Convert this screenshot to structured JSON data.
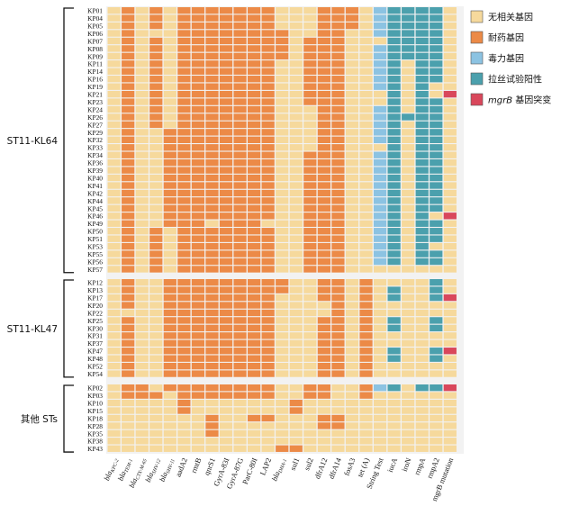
{
  "chart_data": {
    "type": "heatmap",
    "colors": {
      "none": "#f6d99c",
      "resistance": "#ec8a47",
      "virulence": "#8cc3e2",
      "string_pos": "#4ba0ad",
      "mutation": "#d9475b"
    },
    "legend": {
      "placement": "top-right",
      "items": [
        {
          "key": "none",
          "label": "无相关基因"
        },
        {
          "key": "resistance",
          "label": "耐药基因"
        },
        {
          "key": "virulence",
          "label": "毒力基因"
        },
        {
          "key": "string_pos",
          "label": "拉丝试验阳性"
        },
        {
          "key": "mutation",
          "label_em": "mgrB",
          "label": " 基因突变"
        }
      ]
    },
    "columns": [
      "bla_KPC-2",
      "bla_TEM-1",
      "bla_CTX-M-65",
      "bla_SHV-12",
      "bla_SHV-11",
      "aadA2",
      "rmtB",
      "qnrS1",
      "GyrA-83I",
      "GyrA-87G",
      "ParC-80I",
      "LAP2",
      "bla_DHA-1",
      "sul1",
      "sul2",
      "dfrA12",
      "dfrA14",
      "fosA3",
      "tet (A)",
      "String Test",
      "iucA",
      "iroN",
      "rmpA",
      "rmpA2",
      "mgrB mutation"
    ],
    "groups": [
      {
        "label": "ST11-KL64",
        "rows": [
          {
            "id": "KP01",
            "cells": "N R N R N R R R R R R R N N N R R R N V S S S S N"
          },
          {
            "id": "KP04",
            "cells": "N R N R N R R R R R R R N N N R R R N V S S S S N"
          },
          {
            "id": "KP05",
            "cells": "N R N R N R R R R R R R N N N R R R N V S S S S N"
          },
          {
            "id": "KP06",
            "cells": "N R N N N R R R R R R R R N N R R N N V S S S S N"
          },
          {
            "id": "KP07",
            "cells": "N R N R N R R R R R R R R N R R R N N N S S S S N"
          },
          {
            "id": "KP08",
            "cells": "N R N R N R R R R R R R R N R R R N N V S S S S N"
          },
          {
            "id": "KP09",
            "cells": "N R N R N R R R R R R R R N R R R N N V S S S S N"
          },
          {
            "id": "KP11",
            "cells": "N R N R N R R R R R R R N N R R R N N V S N S S N"
          },
          {
            "id": "KP14",
            "cells": "N R N R N R R R R R R R N N R R R N N V S N S S N"
          },
          {
            "id": "KP16",
            "cells": "N R N R N R R R R R R R N N R R R N N V S N S S N"
          },
          {
            "id": "KP19",
            "cells": "N R N R N R R R R R R R N N R R R N N V S N S N N"
          },
          {
            "id": "KP21",
            "cells": "N R N R N R R R R R R R N N R R R N N N S N S N M"
          },
          {
            "id": "KP23",
            "cells": "N R N R N R R R R R R R N N R R R N N N S N S S N"
          },
          {
            "id": "KP24",
            "cells": "N R N R N R R R R R R R N N N R R N N V S N S S N"
          },
          {
            "id": "KP26",
            "cells": "N R N R N R R R R R R R N N N R R N N V S S S S N"
          },
          {
            "id": "KP27",
            "cells": "N R N R N R R R R R R R N N N R R N N V S N S S N"
          },
          {
            "id": "KP29",
            "cells": "N R N N R R R R R R R R N N N R R N N V S N S S N"
          },
          {
            "id": "KP32",
            "cells": "N R N N R R R R R R R R N N N R R N N V S N S S N"
          },
          {
            "id": "KP33",
            "cells": "N R N N R R R R R R R R N N N R R N N N S N S S N"
          },
          {
            "id": "KP34",
            "cells": "N R N N R R R R R R R R N N R R R N N V S N S S N"
          },
          {
            "id": "KP36",
            "cells": "N R N N R R R R R R R R N N R R R N N V S N S S N"
          },
          {
            "id": "KP39",
            "cells": "N R N N R R R R R R R R N N R R R N N V S N S S N"
          },
          {
            "id": "KP40",
            "cells": "N R N N R R R R R R R R N N R R R N N V S N S S N"
          },
          {
            "id": "KP41",
            "cells": "N R N N R R R R R R R R N N R R R N N V S N S S N"
          },
          {
            "id": "KP42",
            "cells": "N R N N R R R R R R R R N N R R R N N V S N S S N"
          },
          {
            "id": "KP44",
            "cells": "N R N N R R R R R R R R N N R R R N N V S N S S N"
          },
          {
            "id": "KP45",
            "cells": "N R N N R R R R R R R R N N R R R N N V S N S S N"
          },
          {
            "id": "KP46",
            "cells": "N R N N R R R R R R R R N N R R R N N V S N S N M"
          },
          {
            "id": "KP49",
            "cells": "N R N N R R R N R R R N N N R R R N N V S N S S N"
          },
          {
            "id": "KP50",
            "cells": "N R N R N R R R R R R R N N R R R N N V S N S S N"
          },
          {
            "id": "KP51",
            "cells": "N R N R N R R R R R R R N N R R R N N V S N S S N"
          },
          {
            "id": "KP53",
            "cells": "N R N R N R R R R R R R N N R R R N N V S N S N N"
          },
          {
            "id": "KP55",
            "cells": "N R N R N R R R R R R R N N R R R N N V S N S S N"
          },
          {
            "id": "KP56",
            "cells": "N R N R N R R R R R R R N N R R R N N V S N S S N"
          },
          {
            "id": "KP57",
            "cells": "N R N R N R R R R R R R N N R R R N N N N N N N N"
          }
        ]
      },
      {
        "label": "ST11-KL47",
        "rows": [
          {
            "id": "KP12",
            "cells": "N R N N R R R R R R R R R N N R R N R N N N N S N"
          },
          {
            "id": "KP13",
            "cells": "N R N N R R R R R R R R R N N R R N R N S N N S N"
          },
          {
            "id": "KP17",
            "cells": "N R N N R R R R R R R R N N N R R N R N S N N S M"
          },
          {
            "id": "KP20",
            "cells": "N R N N R R R R R R R R N N N N R N R N N N N N N"
          },
          {
            "id": "KP22",
            "cells": "N N N N R R R R R R R R N N N N R N R N N N N N N"
          },
          {
            "id": "KP25",
            "cells": "N R N N R R R R R R R R N N N R R N R N S N N S N"
          },
          {
            "id": "KP30",
            "cells": "N R N N R R R R R R R R N N N R R N R N S N N S N"
          },
          {
            "id": "KP31",
            "cells": "N R N N R R R R R R R R N N N R R N R N N N N N N"
          },
          {
            "id": "KP37",
            "cells": "N R N N R R R R R R R R N N N R R N R N N N N N N"
          },
          {
            "id": "KP47",
            "cells": "N R N N R R R R R R R R N N N R R N R N S N N S M"
          },
          {
            "id": "KP48",
            "cells": "N R N N R R R R R R R R N N N R R N R N S N N S N"
          },
          {
            "id": "KP52",
            "cells": "N R N N R R R R R R R R N N N R R N R N N N N N N"
          },
          {
            "id": "KP54",
            "cells": "N R N N R R R R R R R R N N N R R N R N N N N N N"
          }
        ]
      },
      {
        "label": "其他 STs",
        "rows": [
          {
            "id": "KP02",
            "cells": "N R R N R R R R R R R R N N R R N N R V S N S S M"
          },
          {
            "id": "KP03",
            "cells": "N R R R N R R R R R R R N N R R N N R N N N N N N"
          },
          {
            "id": "KP10",
            "cells": "N N N N N R N N N N N N N R N N N N N N N N N N N"
          },
          {
            "id": "KP15",
            "cells": "N N N N N R N N N N N N N R N N N N N N N N N N N"
          },
          {
            "id": "KP18",
            "cells": "N N N N N N N R N N R R N N N R R N N N N N N N N"
          },
          {
            "id": "KP28",
            "cells": "N N N N N N N R N N N N N N N R R N N N N N N N N"
          },
          {
            "id": "KP35",
            "cells": "N N N N N N N R N N N N N N N N N N N N N N N N N"
          },
          {
            "id": "KP38",
            "cells": "N N N N N N N N N N N N N N N N N N N N N N N N N"
          },
          {
            "id": "KP43",
            "cells": "N N N N N N N N N N N N R R N N N N N N N N N N N"
          }
        ]
      }
    ]
  }
}
